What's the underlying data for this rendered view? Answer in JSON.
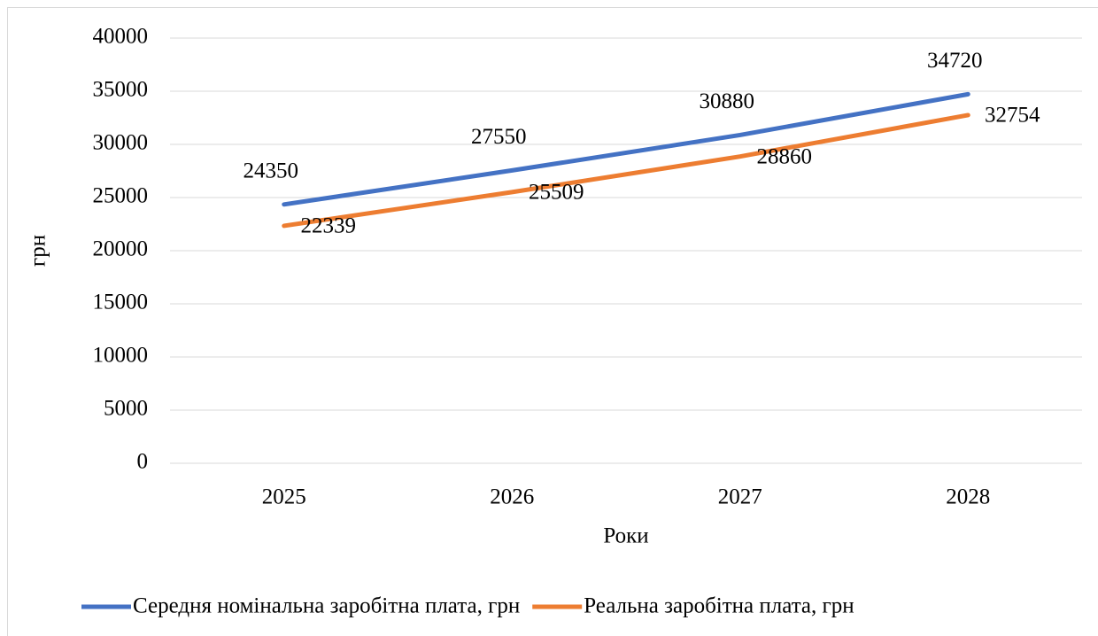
{
  "chart_data": {
    "type": "line",
    "x_label": "Роки",
    "y_label": "грн",
    "categories": [
      "2025",
      "2026",
      "2027",
      "2028"
    ],
    "series": [
      {
        "name": "Середня номінальна заробітна плата, грн",
        "color": "#4472c4",
        "values": [
          24350,
          27550,
          30880,
          34720
        ]
      },
      {
        "name": "Реальна заробітна плата, грн",
        "color": "#ed7d31",
        "values": [
          22339,
          25509,
          28860,
          32754
        ]
      }
    ],
    "ylim": [
      0,
      40000
    ],
    "yticks": [
      0,
      5000,
      10000,
      15000,
      20000,
      25000,
      30000,
      35000,
      40000
    ],
    "grid": true,
    "legend": "bottom"
  }
}
